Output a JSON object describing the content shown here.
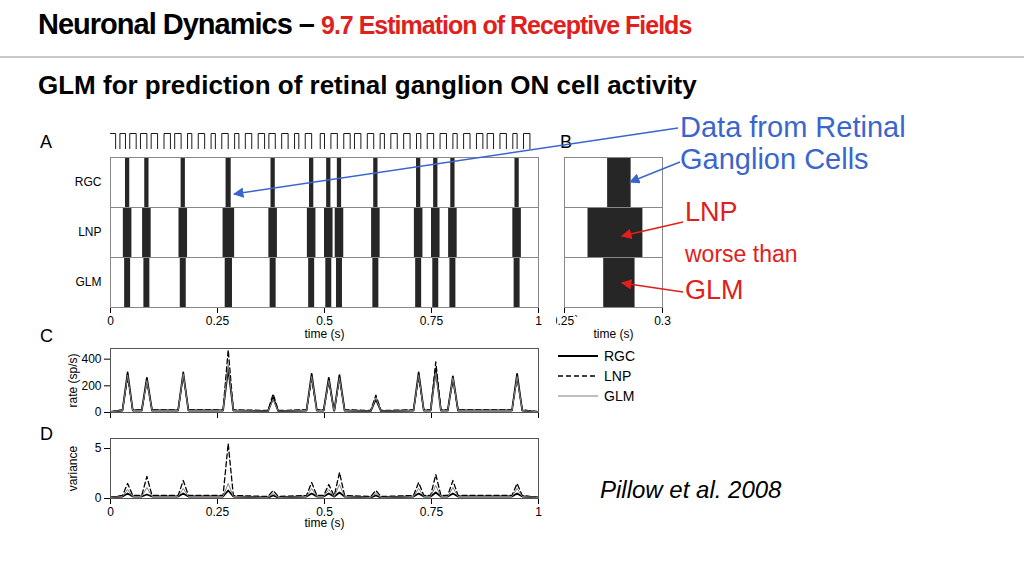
{
  "title": "Neuronal Dynamics –",
  "title_section": "9.7 Estimation of Receptive Fields",
  "subtitle": "GLM for prediction of retinal ganglion ON cell activity",
  "annotations": [
    {
      "text": "Data from Retinal Ganglion Cells",
      "color": "#3a66cc"
    },
    {
      "text": "LNP",
      "color": "#e0201b"
    },
    {
      "text": "worse than",
      "color": "#e0201b"
    },
    {
      "text": "GLM",
      "color": "#e0201b"
    }
  ],
  "citation": "Pillow et al. 2008",
  "chart_data": [
    {
      "type": "raster",
      "panel_label": "A",
      "x_label": "time (s)",
      "xlim": [
        0,
        1
      ],
      "xticks": [
        0,
        0.25,
        0.5,
        0.75,
        1
      ],
      "stimulus": {
        "x": [
          0,
          0.012,
          0.022,
          0.035,
          0.045,
          0.06,
          0.07,
          0.085,
          0.095,
          0.11,
          0.125,
          0.14,
          0.15,
          0.165,
          0.18,
          0.19,
          0.205,
          0.22,
          0.235,
          0.245,
          0.26,
          0.275,
          0.29,
          0.3,
          0.315,
          0.33,
          0.345,
          0.36,
          0.37,
          0.385,
          0.4,
          0.415,
          0.43,
          0.44,
          0.455,
          0.47,
          0.49,
          0.5,
          0.515,
          0.53,
          0.545,
          0.56,
          0.57,
          0.585,
          0.6,
          0.615,
          0.63,
          0.64,
          0.655,
          0.67,
          0.685,
          0.7,
          0.715,
          0.725,
          0.74,
          0.755,
          0.77,
          0.785,
          0.8,
          0.81,
          0.825,
          0.84,
          0.855,
          0.87,
          0.88,
          0.895,
          0.91,
          0.925,
          0.94,
          0.95,
          0.965,
          0.98,
          1
        ],
        "values": [
          1,
          0,
          1,
          0,
          1,
          0,
          1,
          0,
          1,
          0,
          1,
          0,
          1,
          0,
          1,
          0,
          1,
          0,
          1,
          0,
          1,
          0,
          1,
          0,
          1,
          0,
          1,
          0,
          1,
          0,
          1,
          0,
          1,
          0,
          1,
          0,
          1,
          0,
          1,
          0,
          1,
          0,
          1,
          0,
          1,
          0,
          1,
          0,
          1,
          0,
          1,
          0,
          1,
          0,
          1,
          0,
          1,
          0,
          1,
          0,
          1,
          0,
          1,
          0,
          1,
          0,
          1,
          0,
          1,
          0,
          1,
          0,
          1
        ]
      },
      "series": [
        {
          "name": "RGC",
          "color": "#000000",
          "bursts": [
            [
              0.035,
              0.045
            ],
            [
              0.08,
              0.09
            ],
            [
              0.165,
              0.175
            ],
            [
              0.27,
              0.282
            ],
            [
              0.375,
              0.385
            ],
            [
              0.465,
              0.475
            ],
            [
              0.505,
              0.515
            ],
            [
              0.53,
              0.54
            ],
            [
              0.615,
              0.625
            ],
            [
              0.715,
              0.725
            ],
            [
              0.755,
              0.765
            ],
            [
              0.795,
              0.805
            ],
            [
              0.945,
              0.955
            ]
          ]
        },
        {
          "name": "LNP",
          "color": "#000000",
          "bursts": [
            [
              0.03,
              0.05
            ],
            [
              0.075,
              0.095
            ],
            [
              0.16,
              0.18
            ],
            [
              0.263,
              0.29
            ],
            [
              0.37,
              0.39
            ],
            [
              0.46,
              0.48
            ],
            [
              0.5,
              0.52
            ],
            [
              0.525,
              0.545
            ],
            [
              0.61,
              0.63
            ],
            [
              0.71,
              0.73
            ],
            [
              0.75,
              0.77
            ],
            [
              0.79,
              0.81
            ],
            [
              0.94,
              0.96
            ]
          ]
        },
        {
          "name": "GLM",
          "color": "#000000",
          "bursts": [
            [
              0.033,
              0.047
            ],
            [
              0.078,
              0.092
            ],
            [
              0.163,
              0.177
            ],
            [
              0.268,
              0.285
            ],
            [
              0.373,
              0.387
            ],
            [
              0.463,
              0.477
            ],
            [
              0.503,
              0.517
            ],
            [
              0.528,
              0.542
            ],
            [
              0.613,
              0.627
            ],
            [
              0.713,
              0.727
            ],
            [
              0.753,
              0.767
            ],
            [
              0.793,
              0.807
            ],
            [
              0.943,
              0.957
            ]
          ]
        }
      ]
    },
    {
      "type": "raster",
      "panel_label": "B",
      "x_label": "time (s)",
      "xlim": [
        0.25,
        0.3
      ],
      "xticks": [
        {
          "value": 0.25,
          "label": "0.25`"
        },
        0.3
      ],
      "series": [
        {
          "name": "RGC",
          "color": "#000000",
          "bursts": [
            [
              0.272,
              0.284
            ]
          ]
        },
        {
          "name": "LNP",
          "color": "#000000",
          "bursts": [
            [
              0.262,
              0.29
            ]
          ]
        },
        {
          "name": "GLM",
          "color": "#000000",
          "bursts": [
            [
              0.27,
              0.286
            ]
          ]
        }
      ]
    },
    {
      "type": "line",
      "panel_label": "C",
      "y_label": "rate (sp/s)",
      "xlim": [
        0,
        1
      ],
      "xticks": [
        0,
        0.25,
        0.5,
        0.75,
        1
      ],
      "ylim": [
        0,
        480
      ],
      "yticks": [
        0,
        200,
        400
      ],
      "tick_labels": "y",
      "legend": "right",
      "x": [
        0,
        0.028,
        0.04,
        0.052,
        0.073,
        0.085,
        0.097,
        0.158,
        0.17,
        0.182,
        0.263,
        0.275,
        0.287,
        0.368,
        0.38,
        0.392,
        0.458,
        0.47,
        0.482,
        0.498,
        0.51,
        0.522,
        0.523,
        0.535,
        0.547,
        0.608,
        0.62,
        0.632,
        0.708,
        0.72,
        0.732,
        0.748,
        0.76,
        0.772,
        0.788,
        0.8,
        0.812,
        0.938,
        0.95,
        0.962,
        1
      ],
      "series": [
        {
          "name": "RGC",
          "color": "#000000",
          "line_style": "solid",
          "values": [
            5,
            15,
            300,
            15,
            15,
            260,
            15,
            15,
            300,
            15,
            15,
            330,
            15,
            10,
            110,
            10,
            15,
            290,
            15,
            15,
            260,
            15,
            15,
            280,
            15,
            10,
            100,
            10,
            15,
            300,
            15,
            15,
            320,
            15,
            15,
            270,
            15,
            15,
            290,
            15,
            5
          ]
        },
        {
          "name": "LNP",
          "color": "#000000",
          "line_style": "dashed",
          "values": [
            5,
            20,
            260,
            20,
            20,
            230,
            20,
            20,
            280,
            20,
            20,
            470,
            20,
            15,
            140,
            15,
            20,
            250,
            20,
            20,
            230,
            20,
            20,
            250,
            20,
            15,
            130,
            15,
            20,
            260,
            20,
            20,
            380,
            20,
            20,
            240,
            20,
            20,
            260,
            20,
            5
          ]
        },
        {
          "name": "GLM",
          "color": "#808080",
          "line_style": "solid",
          "values": [
            5,
            15,
            280,
            15,
            15,
            240,
            15,
            15,
            290,
            15,
            15,
            360,
            15,
            10,
            100,
            10,
            15,
            270,
            15,
            15,
            240,
            15,
            15,
            260,
            15,
            10,
            110,
            10,
            15,
            280,
            15,
            15,
            300,
            15,
            15,
            260,
            15,
            15,
            270,
            15,
            5
          ]
        }
      ]
    },
    {
      "type": "line",
      "panel_label": "D",
      "x_label": "time (s)",
      "y_label": "variance",
      "xlim": [
        0,
        1
      ],
      "xticks": [
        0,
        0.25,
        0.5,
        0.75,
        1
      ],
      "ylim": [
        0,
        6
      ],
      "yticks": [
        0,
        5
      ],
      "x": [
        0,
        0.028,
        0.04,
        0.052,
        0.073,
        0.085,
        0.097,
        0.158,
        0.17,
        0.182,
        0.263,
        0.275,
        0.287,
        0.368,
        0.38,
        0.392,
        0.458,
        0.47,
        0.482,
        0.498,
        0.51,
        0.522,
        0.523,
        0.535,
        0.547,
        0.608,
        0.62,
        0.632,
        0.708,
        0.72,
        0.732,
        0.748,
        0.76,
        0.772,
        0.788,
        0.8,
        0.812,
        0.938,
        0.95,
        0.962,
        1
      ],
      "series": [
        {
          "name": "RGC",
          "color": "#000000",
          "line_style": "solid",
          "values": [
            0.1,
            0.2,
            0.5,
            0.2,
            0.2,
            0.4,
            0.2,
            0.2,
            0.5,
            0.2,
            0.2,
            0.8,
            0.2,
            0.1,
            0.3,
            0.1,
            0.2,
            0.5,
            0.2,
            0.2,
            0.5,
            0.2,
            0.2,
            0.6,
            0.2,
            0.1,
            0.3,
            0.1,
            0.2,
            0.5,
            0.2,
            0.2,
            0.6,
            0.2,
            0.2,
            0.5,
            0.2,
            0.2,
            0.5,
            0.2,
            0.1
          ]
        },
        {
          "name": "LNP",
          "color": "#000000",
          "line_style": "dashed",
          "values": [
            0.1,
            0.3,
            1.5,
            0.3,
            0.3,
            2.2,
            0.3,
            0.3,
            1.8,
            0.3,
            0.3,
            5.5,
            0.3,
            0.2,
            0.8,
            0.2,
            0.3,
            1.6,
            0.3,
            0.3,
            1.4,
            0.3,
            0.3,
            2.6,
            0.3,
            0.2,
            0.8,
            0.2,
            0.3,
            1.6,
            0.3,
            0.3,
            2.4,
            0.3,
            0.3,
            1.8,
            0.3,
            0.3,
            1.5,
            0.3,
            0.1
          ]
        },
        {
          "name": "GLM",
          "color": "#808080",
          "line_style": "solid",
          "values": [
            0.1,
            0.2,
            0.9,
            0.2,
            0.2,
            1.1,
            0.2,
            0.2,
            1.0,
            0.2,
            0.2,
            1.5,
            0.2,
            0.1,
            0.5,
            0.1,
            0.2,
            1.0,
            0.2,
            0.2,
            0.9,
            0.2,
            0.2,
            1.4,
            0.2,
            0.1,
            0.5,
            0.1,
            0.2,
            1.0,
            0.2,
            0.2,
            1.3,
            0.2,
            0.2,
            1.1,
            0.2,
            0.2,
            1.0,
            0.2,
            0.1
          ]
        }
      ]
    }
  ]
}
